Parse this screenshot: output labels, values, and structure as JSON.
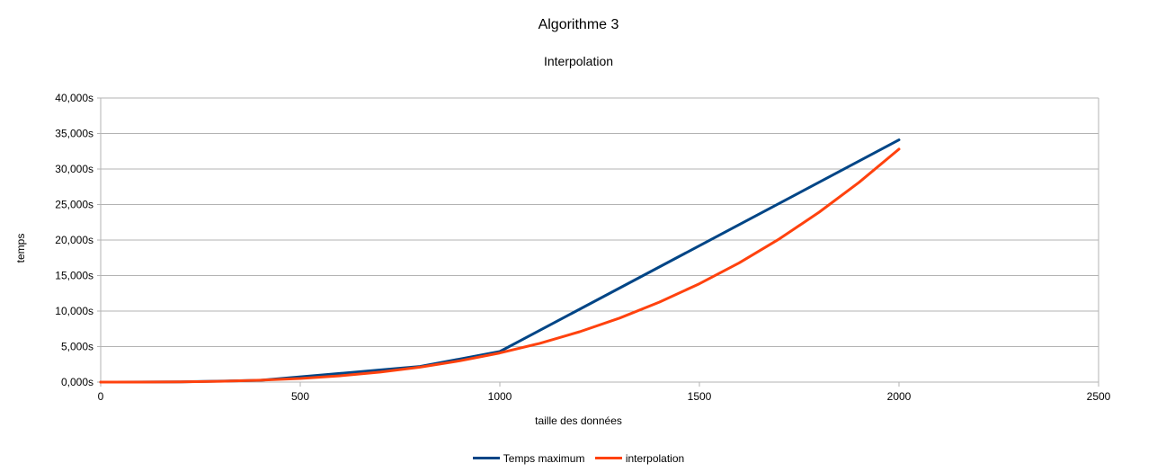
{
  "chart_data": {
    "type": "line",
    "title": "Algorithme 3",
    "subtitle": "Interpolation",
    "xlabel": "taille des données",
    "ylabel": "temps",
    "xlim": [
      0,
      2500
    ],
    "ylim": [
      0,
      40
    ],
    "x_ticks": [
      "0",
      "500",
      "1000",
      "1500",
      "2000",
      "2500"
    ],
    "x_tick_values": [
      0,
      500,
      1000,
      1500,
      2000,
      2500
    ],
    "y_ticks": [
      "0,000s",
      "5,000s",
      "10,000s",
      "15,000s",
      "20,000s",
      "25,000s",
      "30,000s",
      "35,000s",
      "40,000s"
    ],
    "y_tick_values": [
      0,
      5,
      10,
      15,
      20,
      25,
      30,
      35,
      40
    ],
    "grid": "horizontal",
    "legend_position": "bottom",
    "series": [
      {
        "name": "Temps maximum",
        "color": "#004586",
        "x": [
          0,
          200,
          400,
          800,
          1000,
          2000
        ],
        "y": [
          0.0,
          0.03,
          0.25,
          2.2,
          4.3,
          34.1
        ]
      },
      {
        "name": "interpolation",
        "color": "#ff420e",
        "x": [
          0,
          100,
          200,
          300,
          400,
          500,
          600,
          700,
          800,
          900,
          1000,
          1100,
          1200,
          1300,
          1400,
          1500,
          1600,
          1700,
          1800,
          1900,
          2000
        ],
        "y": [
          0.0,
          0.004,
          0.033,
          0.11,
          0.26,
          0.51,
          0.89,
          1.41,
          2.1,
          3.0,
          4.1,
          5.46,
          7.09,
          9.01,
          11.26,
          13.85,
          16.8,
          20.15,
          23.92,
          28.13,
          32.8
        ]
      }
    ]
  }
}
